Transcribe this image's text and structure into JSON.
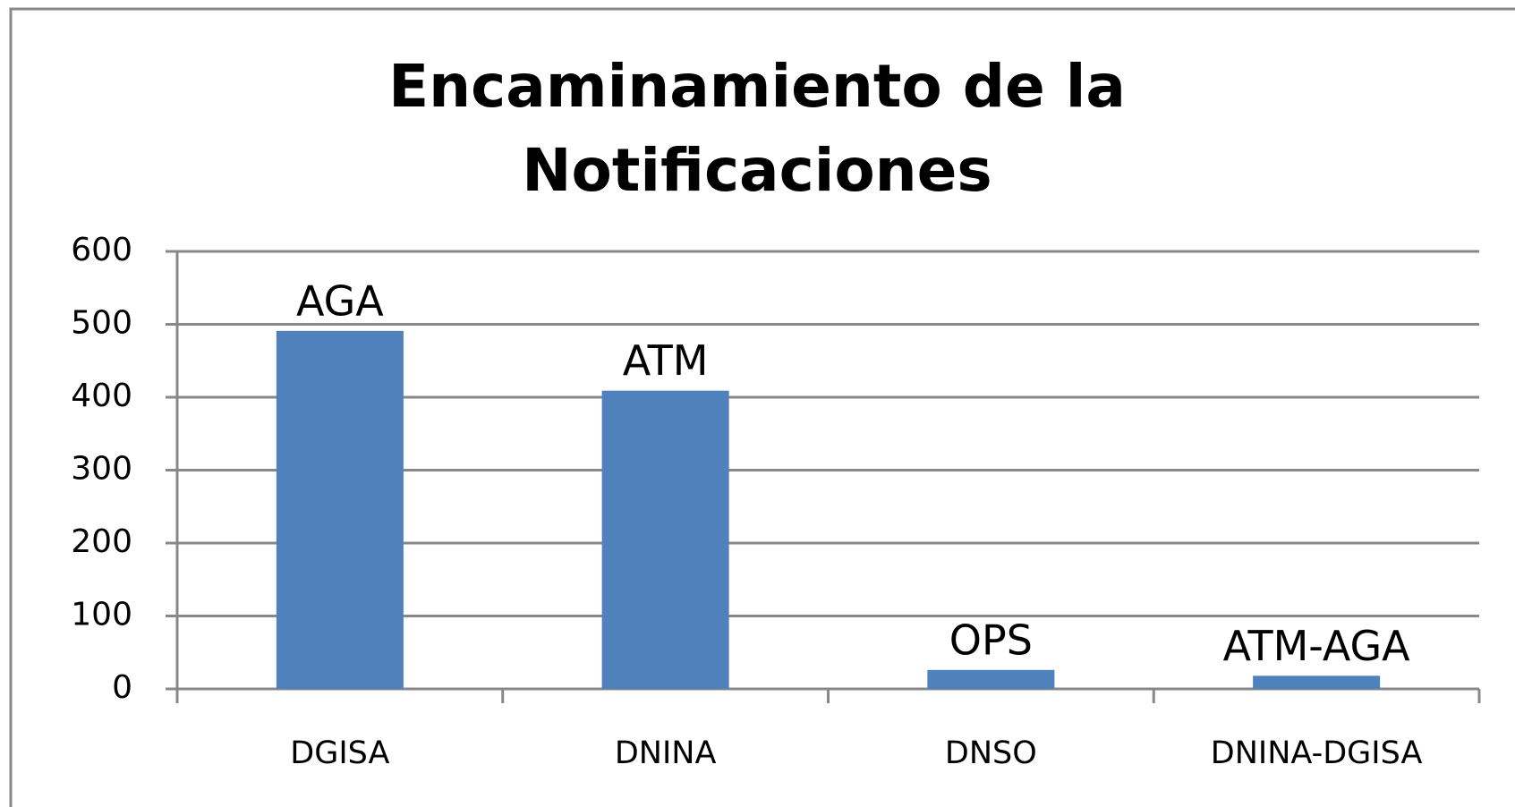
{
  "chart_data": {
    "type": "bar",
    "title": "Encaminamiento de la Notificaciones",
    "categories": [
      "DGISA",
      "DNINA",
      "DNSO",
      "DNINA-DGISA"
    ],
    "values": [
      491,
      409,
      26,
      18
    ],
    "annotations": [
      "AGA",
      "ATM",
      "OPS",
      "ATM-AGA"
    ],
    "color": "#4f81bd",
    "ylim": [
      0,
      600
    ],
    "yticks": [
      0,
      100,
      200,
      300,
      400,
      500,
      600
    ],
    "grid": true
  }
}
